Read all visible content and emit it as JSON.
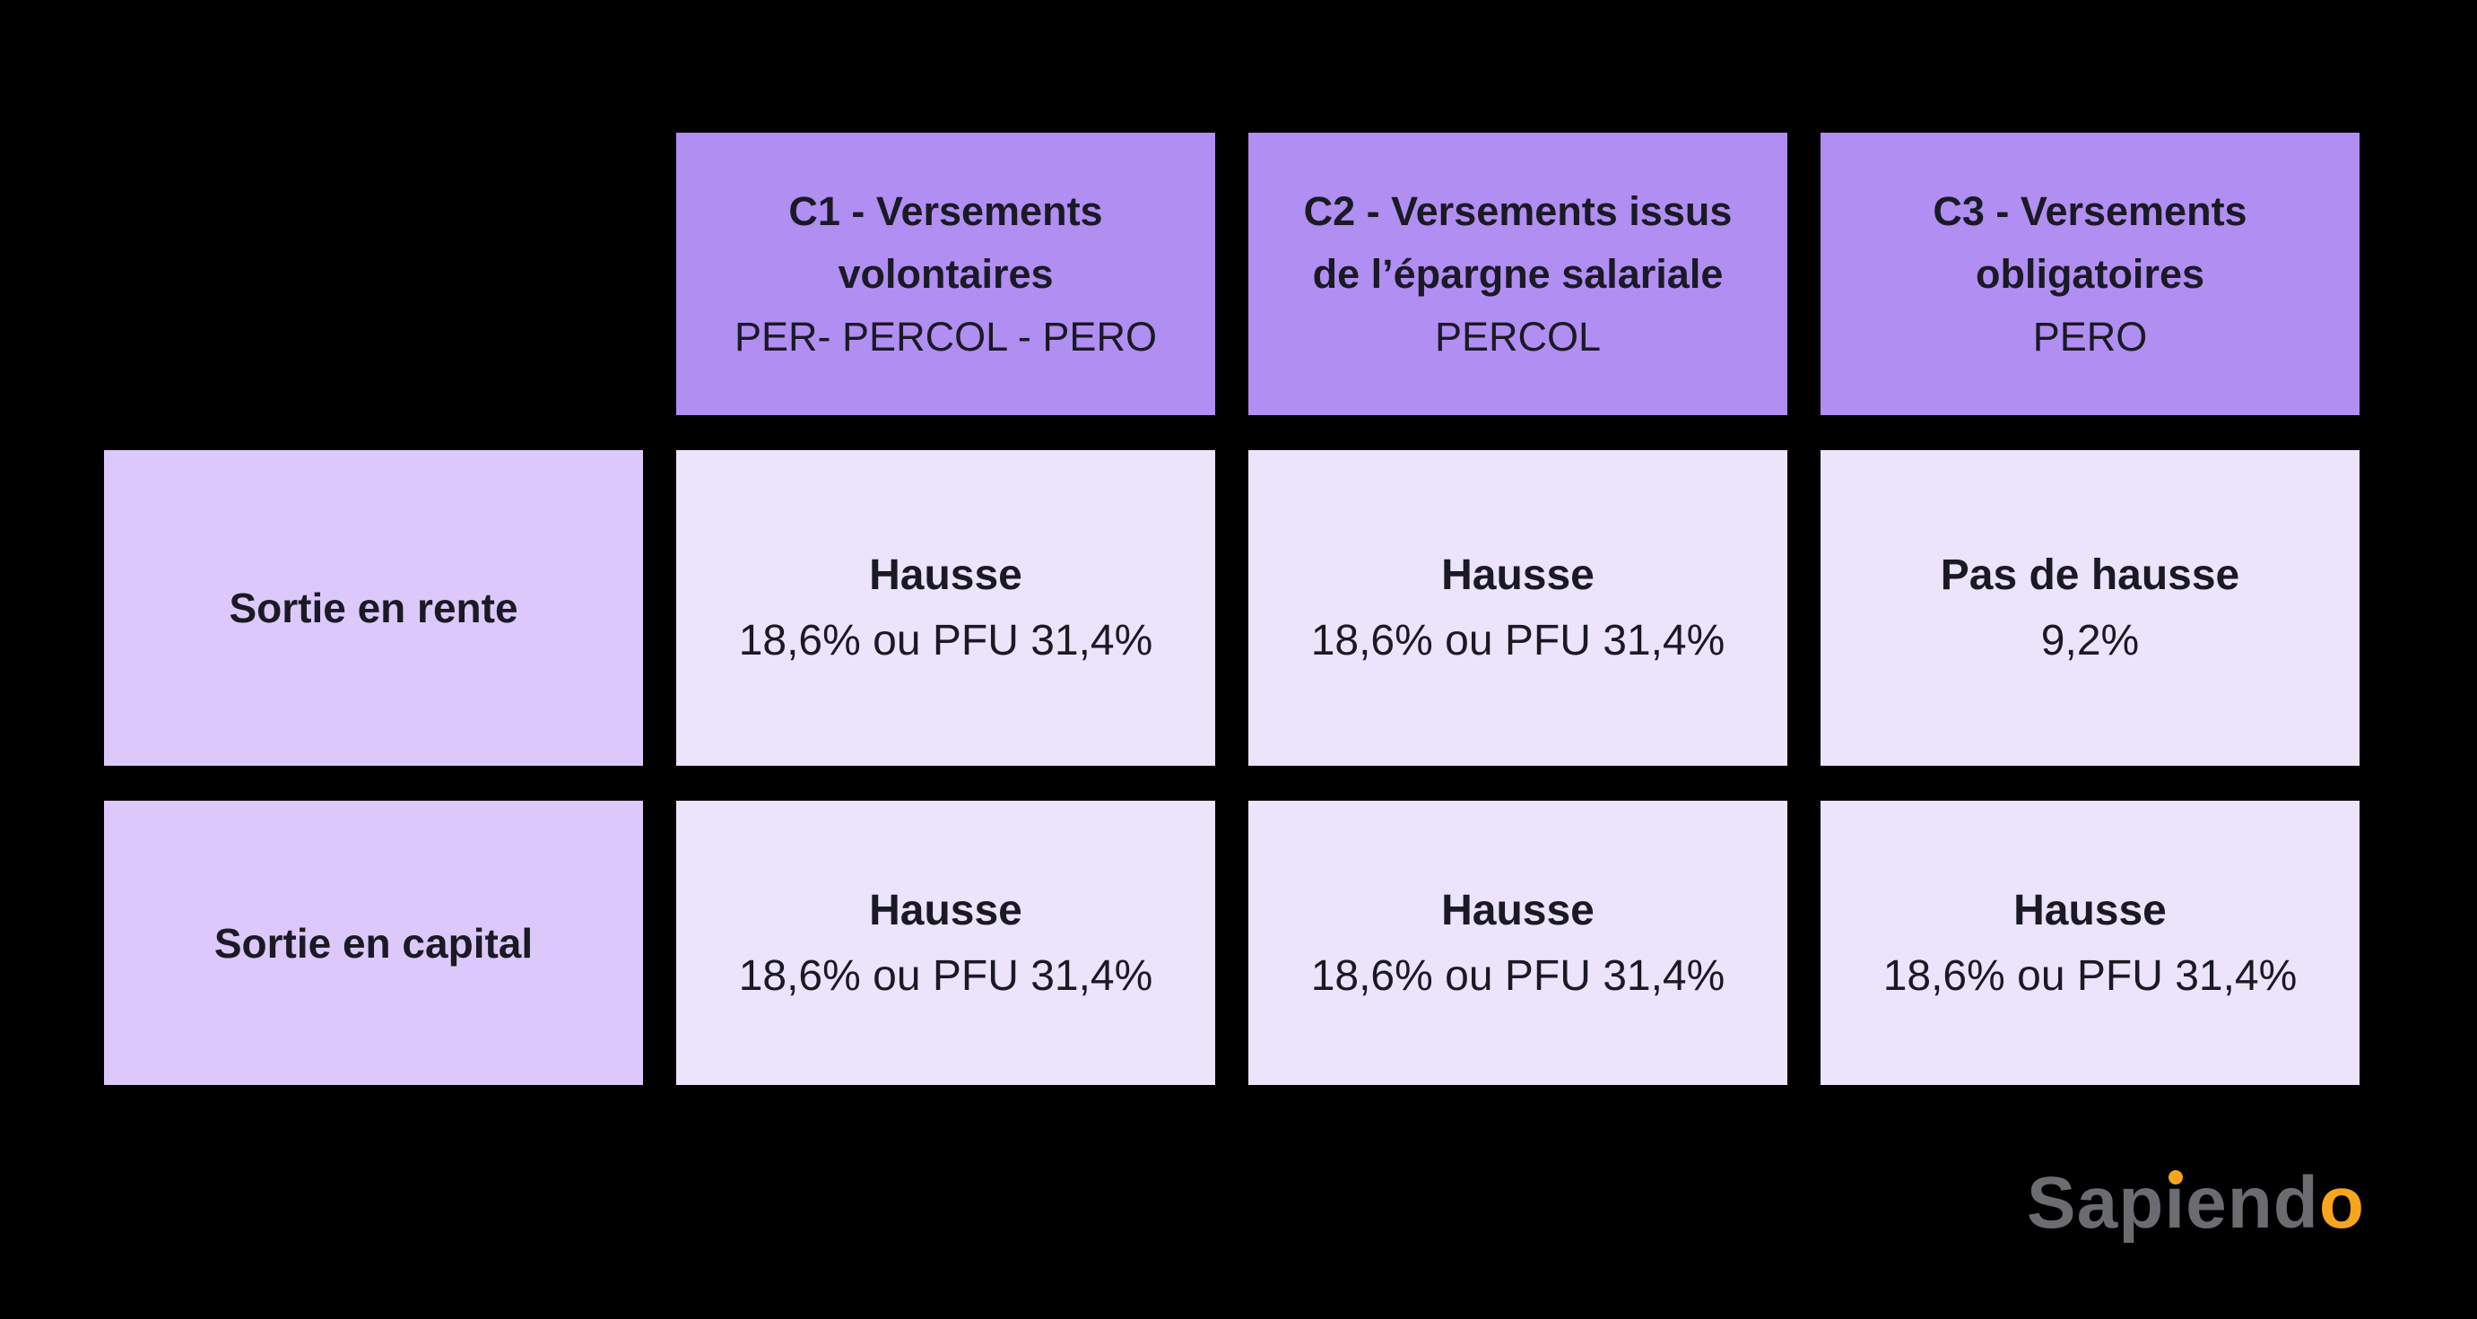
{
  "chart_data": {
    "type": "table",
    "column_headers": [
      {
        "title_line1": "C1 - Versements",
        "title_line2": "volontaires",
        "subtitle": "PER- PERCOL - PERO"
      },
      {
        "title_line1": "C2 - Versements issus",
        "title_line2": "de l’épargne salariale",
        "subtitle": "PERCOL"
      },
      {
        "title_line1": "C3 - Versements",
        "title_line2": "obligatoires",
        "subtitle": "PERO"
      }
    ],
    "rows": [
      {
        "label": "Sortie en rente",
        "cells": [
          {
            "status": "Hausse",
            "value": "18,6% ou PFU 31,4%"
          },
          {
            "status": "Hausse",
            "value": "18,6% ou PFU 31,4%"
          },
          {
            "status": "Pas de hausse",
            "value": "9,2%"
          }
        ]
      },
      {
        "label": "Sortie en capital",
        "cells": [
          {
            "status": "Hausse",
            "value": "18,6% ou PFU 31,4%"
          },
          {
            "status": "Hausse",
            "value": "18,6% ou PFU 31,4%"
          },
          {
            "status": "Hausse",
            "value": "18,6% ou PFU 31,4%"
          }
        ]
      }
    ]
  },
  "logo": {
    "prefix": "Sap",
    "i_stem": "ı",
    "middle": "end",
    "suffix_o": "o"
  },
  "colors": {
    "background": "#000000",
    "header_fill": "#b18ef2",
    "row_label_fill": "#dcc8fa",
    "cell_fill": "#ece4fb",
    "text": "#1a1a24",
    "logo_gray": "#6b6c70",
    "logo_orange": "#f7a51d"
  }
}
